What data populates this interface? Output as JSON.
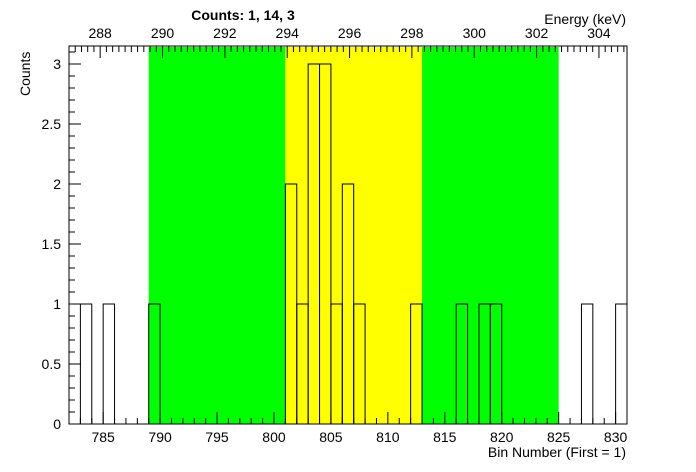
{
  "chart_data": {
    "type": "bar",
    "title": "Counts:   1,   14,   3",
    "xlabel": "Bin Number (First = 1)",
    "ylabel": "Counts",
    "top_axis_label": "Energy (keV)",
    "xlim": [
      782,
      831
    ],
    "ylim": [
      0,
      3.15
    ],
    "x_ticks": [
      785,
      790,
      795,
      800,
      805,
      810,
      815,
      820,
      825,
      830
    ],
    "y_ticks": [
      0,
      0.5,
      1,
      1.5,
      2,
      2.5,
      3
    ],
    "y_tick_labels": [
      "0",
      "0.5",
      "1",
      "1.5",
      "2",
      "2.5",
      "3"
    ],
    "top_ticks": [
      288,
      290,
      292,
      294,
      296,
      298,
      300,
      302,
      304
    ],
    "top_axis_map": {
      "bin_a": 782,
      "energy_a": 287.0,
      "bin_b": 831,
      "energy_b": 304.9
    },
    "bin_edges_start": 782,
    "bin_width": 1,
    "values": [
      0,
      1,
      0,
      1,
      0,
      0,
      0,
      1,
      0,
      0,
      0,
      0,
      0,
      0,
      0,
      0,
      0,
      0,
      0,
      2,
      1,
      3,
      3,
      1,
      2,
      1,
      0,
      0,
      0,
      0,
      1,
      0,
      0,
      0,
      1,
      0,
      1,
      1,
      0,
      0,
      0,
      0,
      0,
      0,
      0,
      1,
      0,
      0,
      1
    ],
    "regions": [
      {
        "name": "left-background",
        "from": 789,
        "to": 801,
        "color": "#00ff00"
      },
      {
        "name": "peak",
        "from": 801,
        "to": 813,
        "color": "#ffff00"
      },
      {
        "name": "right-background",
        "from": 813,
        "to": 825,
        "color": "#00ff00"
      }
    ],
    "grid": false,
    "legend": "none"
  }
}
